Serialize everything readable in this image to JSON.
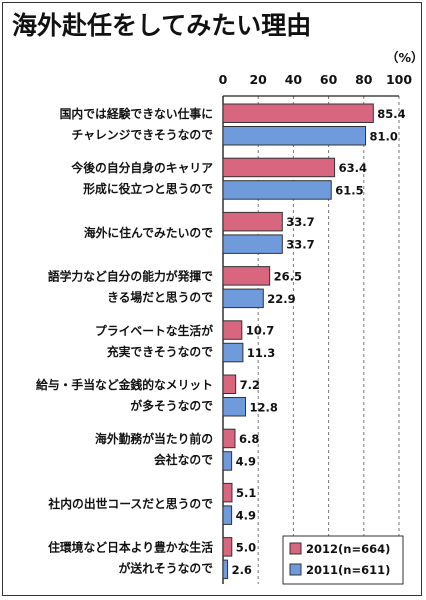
{
  "chart_data": {
    "type": "bar",
    "orientation": "horizontal",
    "title": "海外赴任をしてみたい理由",
    "unit_label": "（%）",
    "xlim": [
      0,
      100
    ],
    "ticks": [
      "0",
      "20",
      "40",
      "60",
      "80",
      "100"
    ],
    "tick_values": [
      0,
      20,
      40,
      60,
      80,
      100
    ],
    "categories": [
      [
        "国内では経験できない仕事に",
        "チャレンジできそうなので"
      ],
      [
        "今後の自分自身のキャリア",
        "形成に役立つと思うので"
      ],
      [
        "海外に住んでみたいので"
      ],
      [
        "語学力など自分の能力が発揮で",
        "きる場だと思うので"
      ],
      [
        "プライベートな生活が",
        "充実できそうなので"
      ],
      [
        "給与・手当など金銭的なメリット",
        "が多そうなので"
      ],
      [
        "海外勤務が当たり前の",
        "会社なので"
      ],
      [
        "社内の出世コースだと思うので"
      ],
      [
        "住環境など日本より豊かな生活",
        "が送れそうなので"
      ]
    ],
    "series": [
      {
        "name": "2012(n=664)",
        "color": "#d9667f",
        "values": [
          85.4,
          63.4,
          33.7,
          26.5,
          10.7,
          7.2,
          6.8,
          5.1,
          5.0
        ]
      },
      {
        "name": "2011(n=611)",
        "color": "#6f9bdd",
        "values": [
          81.0,
          61.5,
          33.7,
          22.9,
          11.3,
          12.8,
          4.9,
          4.9,
          2.6
        ]
      }
    ],
    "value_labels": [
      [
        "85.4",
        "63.4",
        "33.7",
        "26.5",
        "10.7",
        "7.2",
        "6.8",
        "5.1",
        "5.0"
      ],
      [
        "81.0",
        "61.5",
        "33.7",
        "22.9",
        "11.3",
        "12.8",
        "4.9",
        "4.9",
        "2.6"
      ]
    ],
    "legend_position": "bottom-right",
    "grid": true
  }
}
